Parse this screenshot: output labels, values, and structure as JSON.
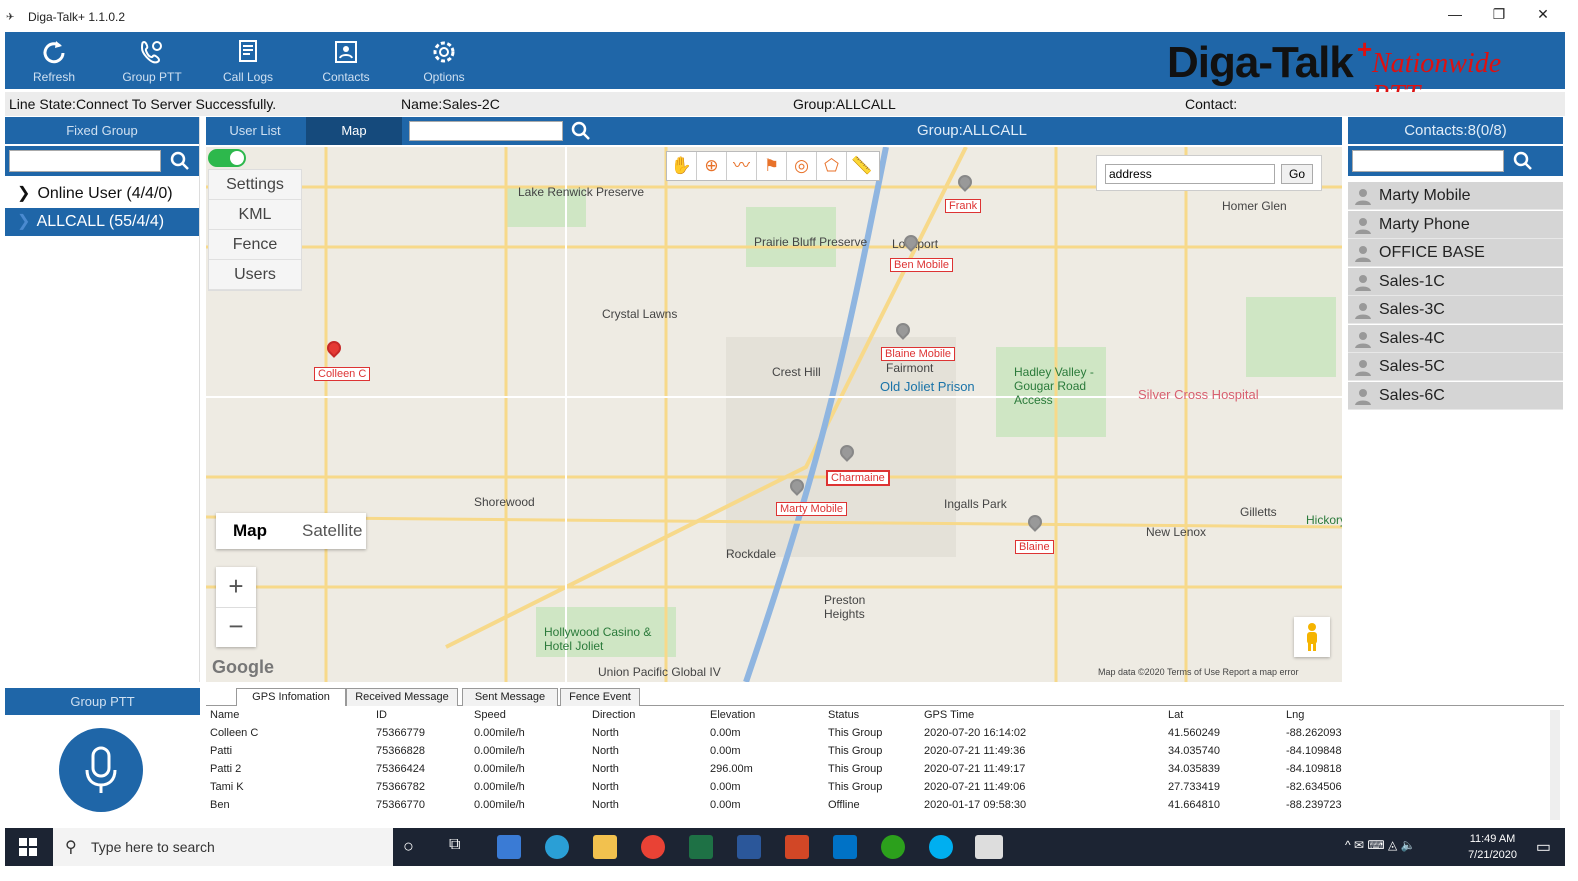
{
  "window": {
    "title": "Diga-Talk+ 1.1.0.2",
    "minimize": "—",
    "restore": "❐",
    "close": "✕"
  },
  "toolbar": {
    "buttons": [
      {
        "label": "Refresh",
        "icon": "refresh-icon"
      },
      {
        "label": "Group PTT",
        "icon": "group-ptt-icon"
      },
      {
        "label": "Call Logs",
        "icon": "call-logs-icon"
      },
      {
        "label": "Contacts",
        "icon": "contacts-icon"
      },
      {
        "label": "Options",
        "icon": "gear-icon"
      }
    ],
    "logo_main": "Diga-Talk",
    "logo_plus": "+",
    "logo_sub": "Nationwide PTT"
  },
  "status": {
    "line_state": "Line State:Connect To Server Successfully.",
    "name": "Name:Sales-2C",
    "group": "Group:ALLCALL",
    "contact": "Contact:"
  },
  "left": {
    "header": "Fixed Group",
    "search_value": "",
    "items": [
      {
        "label": "Online User (4/4/0)"
      },
      {
        "label": "ALLCALL (55/4/4)"
      }
    ],
    "ptt_header": "Group PTT"
  },
  "center": {
    "tab_user_list": "User List",
    "tab_map": "Map",
    "search_value": "",
    "group_title": "Group:ALLCALL",
    "side_menu": [
      "Settings",
      "KML",
      "Fence",
      "Users"
    ],
    "address_value": "address",
    "go_label": "Go",
    "maptype": {
      "map": "Map",
      "satellite": "Satellite"
    },
    "zoom_in": "+",
    "zoom_out": "−",
    "google": "Google",
    "footer": "Map data ©2020    Terms of Use    Report a map error"
  },
  "map": {
    "markers": [
      {
        "label": "Colleen C"
      },
      {
        "label": "Frank"
      },
      {
        "label": "Ben Mobile"
      },
      {
        "label": "Blaine Mobile"
      },
      {
        "label": "Charmaine"
      },
      {
        "label": "Marty Mobile"
      },
      {
        "label": "Blaine"
      }
    ],
    "places": [
      "Lake Renwick Preserve",
      "Prairie Bluff Preserve",
      "Lockport",
      "Homer Glen",
      "Crystal Lawns",
      "Crest Hill",
      "Fairmont",
      "Old Joliet Prison",
      "Hadley Valley - Gougar Road Access",
      "Silver Cross Hospital",
      "Shorewood",
      "Ingalls Park",
      "Gilletts",
      "New Lenox",
      "Rockdale",
      "Preston Heights",
      "Hollywood Casino & Hotel Joliet",
      "Union Pacific Global IV",
      "Hickory Creek Pre"
    ]
  },
  "contacts": {
    "header": "Contacts:8(0/8)",
    "search_value": "",
    "items": [
      "Marty Mobile",
      "Marty Phone",
      "OFFICE BASE",
      "Sales-1C",
      "Sales-3C",
      "Sales-4C",
      "Sales-5C",
      "Sales-6C"
    ]
  },
  "bottom": {
    "tabs": [
      "GPS Infomation",
      "Received Message",
      "Sent Message",
      "Fence Event"
    ],
    "columns": [
      "Name",
      "ID",
      "Speed",
      "Direction",
      "Elevation",
      "Status",
      "GPS Time",
      "Lat",
      "Lng"
    ],
    "rows": [
      [
        "Colleen C",
        "75366779",
        "0.00mile/h",
        "North",
        "0.00m",
        "This Group",
        "2020-07-20 16:14:02",
        "41.560249",
        "-88.262093"
      ],
      [
        "Patti",
        "75366828",
        "0.00mile/h",
        "North",
        "0.00m",
        "This Group",
        "2020-07-21 11:49:36",
        "34.035740",
        "-84.109848"
      ],
      [
        "Patti 2",
        "75366424",
        "0.00mile/h",
        "North",
        "296.00m",
        "This Group",
        "2020-07-21 11:49:17",
        "34.035839",
        "-84.109818"
      ],
      [
        "Tami K",
        "75366782",
        "0.00mile/h",
        "North",
        "0.00m",
        "This Group",
        "2020-07-21 11:49:06",
        "27.733419",
        "-82.634506"
      ],
      [
        "Ben",
        "75366770",
        "0.00mile/h",
        "North",
        "0.00m",
        "Offline",
        "2020-01-17 09:58:30",
        "41.664810",
        "-88.239723"
      ]
    ]
  },
  "taskbar": {
    "search_placeholder": "Type here to search",
    "time": "11:49 AM",
    "date": "7/21/2020"
  },
  "colors": {
    "accent": "#1f66a8",
    "marker": "#d33",
    "toggle": "#2db84c"
  }
}
